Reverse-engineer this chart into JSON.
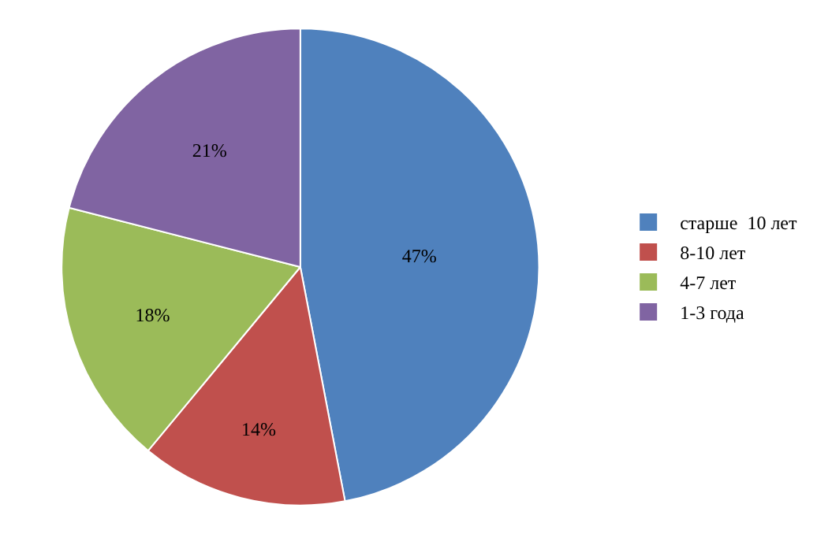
{
  "chart_data": {
    "type": "pie",
    "categories": [
      "старше  10 лет",
      "8-10 лет",
      "4-7 лет",
      "1-3 года"
    ],
    "values": [
      47,
      14,
      18,
      21
    ],
    "colors": [
      "#4f81bd",
      "#c0504d",
      "#9bbb59",
      "#8064a2"
    ],
    "value_labels": [
      "47%",
      "14%",
      "18%",
      "21%"
    ],
    "legend": "right"
  }
}
